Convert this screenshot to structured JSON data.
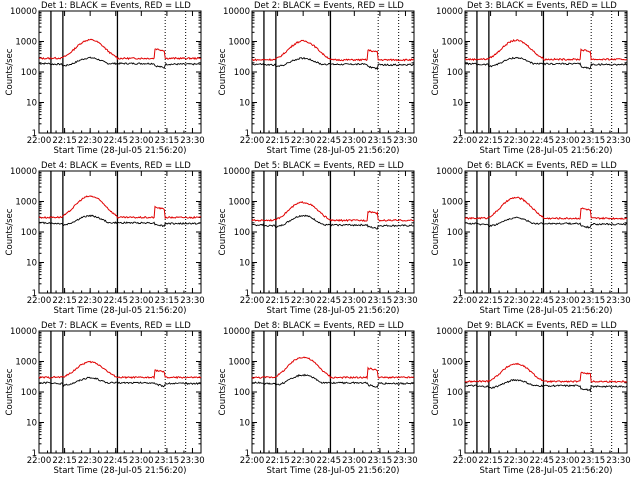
{
  "chart_data": {
    "type": "line",
    "y_scale": "log",
    "ylim": [
      1,
      10000
    ],
    "x_range": [
      "22:00",
      "23:35"
    ],
    "y_ticks": [
      "1",
      "10",
      "100",
      "1000",
      "10000"
    ],
    "x_ticks": [
      "22:00",
      "22:15",
      "22:30",
      "22:45",
      "23:00",
      "23:15",
      "23:30"
    ],
    "ylabel": "Counts/sec",
    "xlabel": "Start Time (28-Jul-05 21:56:20)",
    "legend": "BLACK = Events, RED = LLD",
    "series_colors": {
      "events": "#000000",
      "lld": "#e00000"
    },
    "solid_markers": [
      "22:07",
      "22:14",
      "22:46"
    ],
    "dotted_markers": [
      "23:14",
      "23:26"
    ],
    "panels": [
      {
        "title": "Det 1:",
        "events": {
          "base": 190,
          "peak": 330,
          "post": 160
        },
        "lld": {
          "base": 280,
          "peak": 1150,
          "post": 580
        }
      },
      {
        "title": "Det 2:",
        "events": {
          "base": 180,
          "peak": 320,
          "post": 150
        },
        "lld": {
          "base": 250,
          "peak": 1050,
          "post": 520
        }
      },
      {
        "title": "Det 3:",
        "events": {
          "base": 185,
          "peak": 330,
          "post": 150
        },
        "lld": {
          "base": 260,
          "peak": 1100,
          "post": 540
        }
      },
      {
        "title": "Det 4:",
        "events": {
          "base": 200,
          "peak": 380,
          "post": 180
        },
        "lld": {
          "base": 300,
          "peak": 1500,
          "post": 650
        }
      },
      {
        "title": "Det 5:",
        "events": {
          "base": 170,
          "peak": 380,
          "post": 150
        },
        "lld": {
          "base": 240,
          "peak": 950,
          "post": 480
        }
      },
      {
        "title": "Det 6:",
        "events": {
          "base": 190,
          "peak": 330,
          "post": 160
        },
        "lld": {
          "base": 280,
          "peak": 1350,
          "post": 600
        }
      },
      {
        "title": "Det 7:",
        "events": {
          "base": 200,
          "peak": 330,
          "post": 180
        },
        "lld": {
          "base": 300,
          "peak": 980,
          "post": 520
        }
      },
      {
        "title": "Det 8:",
        "events": {
          "base": 200,
          "peak": 400,
          "post": 170
        },
        "lld": {
          "base": 300,
          "peak": 1400,
          "post": 600
        }
      },
      {
        "title": "Det 9:",
        "events": {
          "base": 160,
          "peak": 280,
          "post": 130
        },
        "lld": {
          "base": 220,
          "peak": 850,
          "post": 450
        }
      }
    ]
  }
}
